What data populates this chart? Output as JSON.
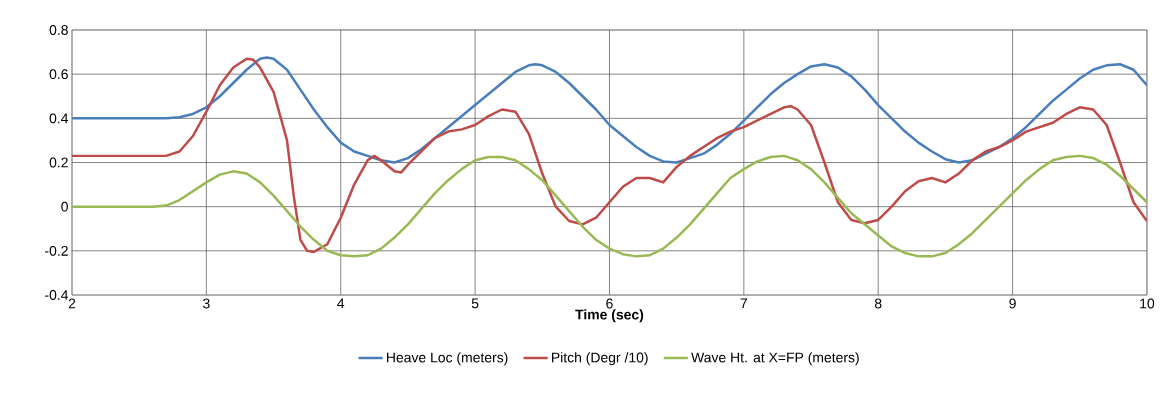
{
  "chart_data": {
    "type": "line",
    "xlabel": "Time (sec)",
    "xlim": [
      2,
      10
    ],
    "xticks": [
      2,
      3,
      4,
      5,
      6,
      7,
      8,
      9,
      10
    ],
    "ylim": [
      -0.4,
      0.8
    ],
    "yticks": [
      -0.4,
      -0.2,
      0,
      0.2,
      0.4,
      0.6,
      0.8
    ],
    "grid": true,
    "legend": "bottom",
    "marker": "none",
    "line_style": "solid",
    "series": [
      {
        "name": "Heave Loc (meters)",
        "color": "#4a7ebb",
        "x": [
          2.0,
          2.7,
          2.8,
          2.9,
          3.0,
          3.1,
          3.2,
          3.3,
          3.4,
          3.45,
          3.5,
          3.6,
          3.7,
          3.8,
          3.9,
          4.0,
          4.1,
          4.2,
          4.3,
          4.4,
          4.5,
          4.6,
          4.7,
          4.8,
          4.9,
          5.0,
          5.1,
          5.2,
          5.3,
          5.4,
          5.45,
          5.5,
          5.6,
          5.7,
          5.8,
          5.9,
          6.0,
          6.1,
          6.2,
          6.3,
          6.4,
          6.5,
          6.6,
          6.7,
          6.8,
          6.9,
          7.0,
          7.1,
          7.2,
          7.3,
          7.4,
          7.5,
          7.6,
          7.7,
          7.8,
          7.9,
          8.0,
          8.1,
          8.2,
          8.3,
          8.4,
          8.5,
          8.6,
          8.7,
          8.8,
          8.9,
          9.0,
          9.1,
          9.2,
          9.3,
          9.4,
          9.5,
          9.6,
          9.7,
          9.8,
          9.9,
          10.0
        ],
        "values": [
          0.4,
          0.4,
          0.405,
          0.42,
          0.45,
          0.5,
          0.56,
          0.62,
          0.67,
          0.675,
          0.67,
          0.62,
          0.53,
          0.44,
          0.36,
          0.29,
          0.25,
          0.23,
          0.21,
          0.2,
          0.22,
          0.26,
          0.31,
          0.36,
          0.41,
          0.46,
          0.51,
          0.56,
          0.61,
          0.64,
          0.645,
          0.64,
          0.61,
          0.56,
          0.5,
          0.44,
          0.37,
          0.32,
          0.27,
          0.23,
          0.205,
          0.2,
          0.22,
          0.24,
          0.28,
          0.33,
          0.39,
          0.45,
          0.51,
          0.56,
          0.6,
          0.635,
          0.645,
          0.63,
          0.59,
          0.53,
          0.46,
          0.4,
          0.34,
          0.29,
          0.25,
          0.215,
          0.2,
          0.21,
          0.24,
          0.27,
          0.31,
          0.36,
          0.42,
          0.48,
          0.53,
          0.58,
          0.62,
          0.64,
          0.645,
          0.62,
          0.55
        ]
      },
      {
        "name": "Pitch (Degr /10)",
        "color": "#be4b48",
        "x": [
          2.0,
          2.7,
          2.8,
          2.9,
          3.0,
          3.1,
          3.2,
          3.3,
          3.35,
          3.4,
          3.5,
          3.6,
          3.65,
          3.7,
          3.75,
          3.8,
          3.9,
          4.0,
          4.1,
          4.2,
          4.25,
          4.3,
          4.4,
          4.45,
          4.5,
          4.6,
          4.7,
          4.8,
          4.9,
          5.0,
          5.1,
          5.2,
          5.3,
          5.4,
          5.5,
          5.6,
          5.7,
          5.8,
          5.9,
          6.0,
          6.1,
          6.2,
          6.3,
          6.4,
          6.5,
          6.6,
          6.7,
          6.8,
          6.9,
          7.0,
          7.1,
          7.2,
          7.3,
          7.35,
          7.4,
          7.5,
          7.6,
          7.7,
          7.8,
          7.9,
          8.0,
          8.1,
          8.2,
          8.3,
          8.4,
          8.5,
          8.6,
          8.7,
          8.8,
          8.9,
          9.0,
          9.1,
          9.2,
          9.3,
          9.4,
          9.5,
          9.6,
          9.7,
          9.8,
          9.9,
          10.0
        ],
        "values": [
          0.23,
          0.23,
          0.25,
          0.32,
          0.43,
          0.55,
          0.63,
          0.67,
          0.665,
          0.63,
          0.52,
          0.3,
          0.05,
          -0.15,
          -0.2,
          -0.205,
          -0.17,
          -0.05,
          0.1,
          0.21,
          0.23,
          0.21,
          0.16,
          0.155,
          0.19,
          0.25,
          0.31,
          0.34,
          0.35,
          0.37,
          0.41,
          0.44,
          0.43,
          0.33,
          0.15,
          0.0,
          -0.065,
          -0.08,
          -0.05,
          0.02,
          0.09,
          0.13,
          0.13,
          0.11,
          0.18,
          0.23,
          0.27,
          0.31,
          0.34,
          0.36,
          0.39,
          0.42,
          0.45,
          0.455,
          0.44,
          0.37,
          0.2,
          0.02,
          -0.06,
          -0.075,
          -0.06,
          0.0,
          0.07,
          0.115,
          0.13,
          0.11,
          0.15,
          0.21,
          0.25,
          0.27,
          0.3,
          0.34,
          0.36,
          0.38,
          0.42,
          0.45,
          0.44,
          0.37,
          0.2,
          0.02,
          -0.065
        ]
      },
      {
        "name": "Wave Ht. at X=FP  (meters)",
        "color": "#98b954",
        "x": [
          2.0,
          2.6,
          2.7,
          2.8,
          2.9,
          3.0,
          3.1,
          3.2,
          3.3,
          3.4,
          3.5,
          3.6,
          3.7,
          3.8,
          3.9,
          4.0,
          4.1,
          4.2,
          4.3,
          4.4,
          4.5,
          4.6,
          4.7,
          4.8,
          4.9,
          5.0,
          5.1,
          5.2,
          5.3,
          5.4,
          5.5,
          5.6,
          5.7,
          5.8,
          5.9,
          6.0,
          6.1,
          6.2,
          6.3,
          6.4,
          6.5,
          6.6,
          6.7,
          6.8,
          6.9,
          7.0,
          7.1,
          7.2,
          7.3,
          7.4,
          7.5,
          7.6,
          7.7,
          7.8,
          7.9,
          8.0,
          8.1,
          8.2,
          8.3,
          8.4,
          8.5,
          8.6,
          8.7,
          8.8,
          8.9,
          9.0,
          9.1,
          9.2,
          9.3,
          9.4,
          9.5,
          9.6,
          9.7,
          9.8,
          9.9,
          10.0
        ],
        "values": [
          0.0,
          0.0,
          0.005,
          0.03,
          0.07,
          0.11,
          0.145,
          0.16,
          0.15,
          0.11,
          0.05,
          -0.02,
          -0.09,
          -0.15,
          -0.2,
          -0.22,
          -0.225,
          -0.22,
          -0.19,
          -0.14,
          -0.08,
          -0.01,
          0.06,
          0.12,
          0.17,
          0.21,
          0.225,
          0.225,
          0.21,
          0.17,
          0.12,
          0.05,
          -0.02,
          -0.09,
          -0.15,
          -0.19,
          -0.215,
          -0.225,
          -0.22,
          -0.19,
          -0.14,
          -0.08,
          -0.01,
          0.06,
          0.13,
          0.17,
          0.205,
          0.225,
          0.23,
          0.21,
          0.17,
          0.11,
          0.04,
          -0.03,
          -0.08,
          -0.13,
          -0.18,
          -0.21,
          -0.225,
          -0.225,
          -0.21,
          -0.17,
          -0.12,
          -0.06,
          0.0,
          0.06,
          0.12,
          0.17,
          0.21,
          0.225,
          0.23,
          0.22,
          0.19,
          0.14,
          0.08,
          0.02
        ]
      }
    ]
  }
}
